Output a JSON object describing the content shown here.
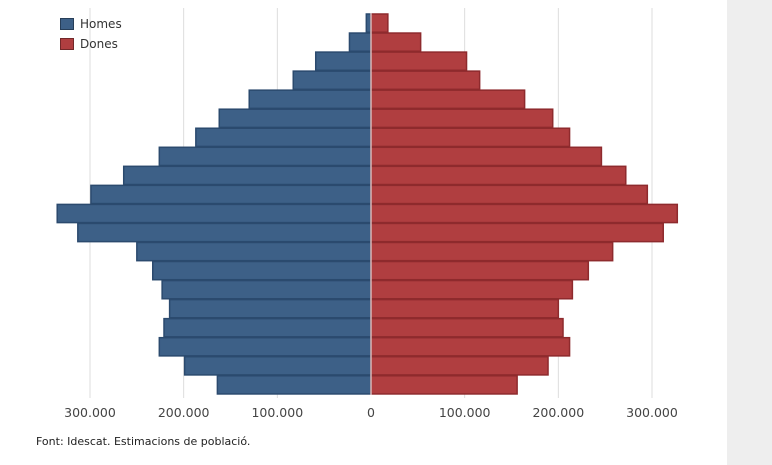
{
  "legend": {
    "homes_label": "Homes",
    "dones_label": "Dones"
  },
  "source": "Font: Idescat. Estimacions de població.",
  "colors": {
    "homes_fill": "#3d6087",
    "homes_stroke": "#2b4a6e",
    "dones_fill": "#b03e40",
    "dones_stroke": "#8e2a2d",
    "grid": "#dddddd",
    "axis_text": "#444444"
  },
  "chart_data": {
    "type": "bar",
    "orientation": "horizontal",
    "title": "",
    "xlabel": "",
    "ylabel": "",
    "xlim": [
      -330000,
      330000
    ],
    "x_ticks": [
      -300000,
      -200000,
      -100000,
      0,
      100000,
      200000,
      300000
    ],
    "x_tick_labels": [
      "300.000",
      "200.000",
      "100.000",
      "0",
      "100.000",
      "200.000",
      "300.000"
    ],
    "grid": true,
    "legend_position": "top-left",
    "categories": [
      "",
      "",
      "",
      "",
      "",
      "",
      "",
      "",
      "",
      "",
      "",
      "",
      "",
      "",
      "",
      "",
      "",
      "",
      "",
      ""
    ],
    "series": [
      {
        "name": "Homes",
        "values": [
          5000,
          23000,
          59000,
          83000,
          130000,
          162000,
          187000,
          226000,
          264000,
          299000,
          335000,
          313000,
          250000,
          233000,
          223000,
          215000,
          221000,
          226000,
          199000,
          164000
        ]
      },
      {
        "name": "Dones",
        "values": [
          18000,
          53000,
          102000,
          116000,
          164000,
          194000,
          212000,
          246000,
          272000,
          295000,
          327000,
          312000,
          258000,
          232000,
          215000,
          200000,
          205000,
          212000,
          189000,
          156000
        ]
      }
    ]
  }
}
